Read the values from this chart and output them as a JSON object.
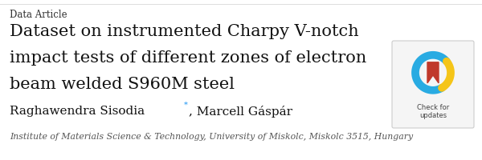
{
  "background_color": "#ffffff",
  "tag_text": "Data Article",
  "tag_color": "#333333",
  "tag_fontsize": 8.5,
  "title_lines": [
    "Dataset on instrumented Charpy V-notch",
    "impact tests of different zones of electron",
    "beam welded S960M steel"
  ],
  "title_fontsize": 15.0,
  "title_color": "#111111",
  "author_name1": "Raghawendra Sisodia",
  "author_star": "*",
  "author_rest": ", Marcell Gáspár",
  "author_fontsize": 11.0,
  "author_color": "#111111",
  "author_star_color": "#2196F3",
  "affiliation_text": "Institute of Materials Science & Technology, University of Miskolc, Miskolc 3515, Hungary",
  "affiliation_fontsize": 7.8,
  "affiliation_color": "#555555",
  "badge_bg": "#f5f5f5",
  "badge_border": "#cccccc",
  "badge_text_line1": "Check for",
  "badge_text_line2": "updates",
  "badge_text_fontsize": 6.0,
  "badge_text_color": "#444444",
  "sep_line_color": "#dddddd"
}
